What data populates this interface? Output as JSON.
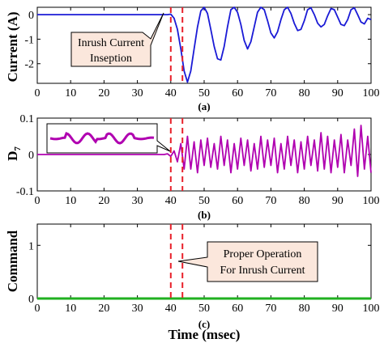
{
  "figure": {
    "xlabel": "Time (msec)",
    "colors": {
      "current": "#1a1ad6",
      "d7": "#b000b0",
      "command": "#20b020",
      "marker": "#e8202a",
      "callout_fill": "#fbe7dc"
    }
  },
  "chart_data": [
    {
      "type": "line",
      "panel_label": "(a)",
      "ylabel": "Current (A)",
      "xlim": [
        0,
        100
      ],
      "ylim": [
        -2.8,
        0.3
      ],
      "xticks": [
        "0",
        "10",
        "20",
        "30",
        "40",
        "50",
        "60",
        "70",
        "80",
        "90",
        "100"
      ],
      "yticks": [
        "0",
        "-1",
        "-2"
      ],
      "ytick_values": [
        0,
        -1,
        -2
      ],
      "marker_x": [
        40,
        43.5
      ],
      "annotation": [
        "Inrush Current",
        "Inseption"
      ],
      "series": [
        {
          "color": "#1a1ad6",
          "x": [
            0,
            38,
            39,
            40,
            41,
            42,
            43,
            44,
            45,
            46,
            47,
            48,
            49,
            50,
            51,
            52,
            53,
            54,
            55,
            56,
            57,
            58,
            59,
            60,
            61,
            62,
            63,
            64,
            65,
            66,
            67,
            68,
            69,
            70,
            71,
            72,
            73,
            74,
            75,
            76,
            77,
            78,
            79,
            80,
            81,
            82,
            83,
            84,
            85,
            86,
            87,
            88,
            89,
            90,
            91,
            92,
            93,
            94,
            95,
            96,
            97,
            98,
            99,
            100
          ],
          "y": [
            0,
            0,
            0,
            0.02,
            -0.15,
            -0.6,
            -1.4,
            -2.3,
            -2.75,
            -2.3,
            -1.4,
            -0.5,
            0.15,
            0.3,
            0.05,
            -0.6,
            -1.3,
            -1.8,
            -1.85,
            -1.3,
            -0.5,
            0.2,
            0.3,
            0.1,
            -0.4,
            -1.05,
            -1.4,
            -1.1,
            -0.5,
            0.1,
            0.3,
            0.2,
            -0.25,
            -0.75,
            -0.95,
            -0.7,
            -0.2,
            0.2,
            0.3,
            0.05,
            -0.35,
            -0.65,
            -0.6,
            -0.25,
            0.2,
            0.28,
            0.0,
            -0.35,
            -0.5,
            -0.4,
            -0.05,
            0.25,
            0.2,
            -0.1,
            -0.4,
            -0.45,
            -0.2,
            0.2,
            0.28,
            0.0,
            -0.3,
            -0.38,
            -0.15,
            -0.2
          ]
        }
      ]
    },
    {
      "type": "line",
      "panel_label": "(b)",
      "ylabel": "D",
      "ylabel_sub": "7",
      "xlim": [
        0,
        100
      ],
      "ylim": [
        -0.1,
        0.1
      ],
      "xticks": [
        "0",
        "10",
        "20",
        "30",
        "40",
        "50",
        "60",
        "70",
        "80",
        "90",
        "100"
      ],
      "yticks": [
        "0.1",
        "0",
        "-0.1"
      ],
      "ytick_values": [
        0.1,
        0,
        -0.1
      ],
      "marker_x": [
        40,
        43.5
      ],
      "series": [
        {
          "color": "#b000b0",
          "x": [
            0,
            38,
            39,
            40,
            41,
            42,
            43,
            44,
            45,
            46,
            47,
            48,
            49,
            50,
            51,
            52,
            53,
            54,
            55,
            56,
            57,
            58,
            59,
            60,
            61,
            62,
            63,
            64,
            65,
            66,
            67,
            68,
            69,
            70,
            71,
            72,
            73,
            74,
            75,
            76,
            77,
            78,
            79,
            80,
            81,
            82,
            83,
            84,
            85,
            86,
            87,
            88,
            89,
            90,
            91,
            92,
            93,
            94,
            95,
            96,
            97,
            98,
            99,
            100
          ],
          "y": [
            0,
            0,
            0.002,
            -0.005,
            0.01,
            -0.02,
            0.03,
            -0.04,
            0.05,
            -0.04,
            0.035,
            -0.05,
            0.04,
            -0.03,
            0.045,
            -0.035,
            0.03,
            -0.04,
            0.05,
            -0.03,
            0.04,
            -0.05,
            0.03,
            -0.04,
            0.045,
            -0.03,
            0.04,
            -0.045,
            0.03,
            -0.04,
            0.05,
            -0.035,
            0.04,
            -0.03,
            0.045,
            -0.05,
            0.03,
            -0.04,
            0.05,
            -0.03,
            0.04,
            -0.05,
            0.035,
            -0.04,
            0.05,
            -0.03,
            0.04,
            -0.045,
            0.06,
            -0.04,
            0.05,
            -0.05,
            0.04,
            -0.035,
            0.055,
            -0.05,
            0.04,
            -0.03,
            0.07,
            -0.06,
            0.08,
            -0.04,
            0.05,
            -0.05
          ]
        }
      ]
    },
    {
      "type": "line",
      "panel_label": "(c)",
      "ylabel": "Command",
      "xlim": [
        0,
        100
      ],
      "ylim": [
        0,
        1.4
      ],
      "xticks": [
        "0",
        "10",
        "20",
        "30",
        "40",
        "50",
        "60",
        "70",
        "80",
        "90",
        "100"
      ],
      "yticks": [
        "1",
        "0"
      ],
      "ytick_values": [
        1,
        0
      ],
      "marker_x": [
        40,
        43.5
      ],
      "annotation": [
        "Proper Operation",
        "For Inrush Current"
      ],
      "series": [
        {
          "color": "#20b020",
          "x": [
            0,
            100
          ],
          "y": [
            0,
            0
          ]
        }
      ]
    }
  ]
}
